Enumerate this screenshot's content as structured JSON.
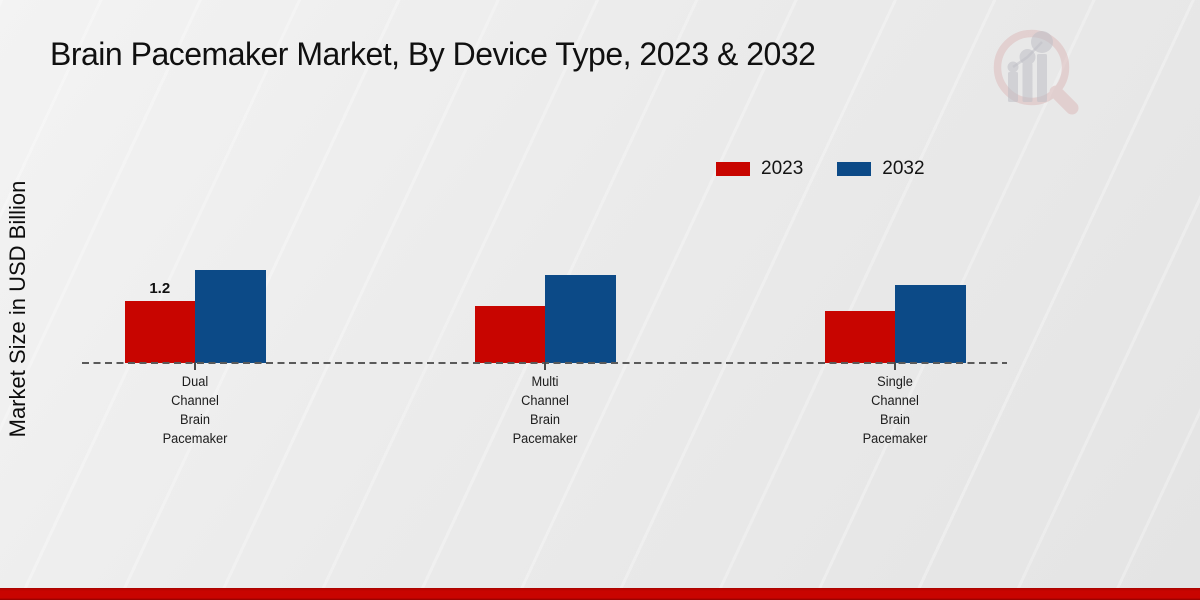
{
  "title": "Brain Pacemaker Market, By Device Type, 2023 & 2032",
  "watermark": {
    "icon": "market-research-future-magnifier-logo",
    "ring_color": "#dcb8b8",
    "bars_color": "#bfbfc6"
  },
  "colors": {
    "background_top": "#f3f3f3",
    "background_bottom": "#e4e4e4",
    "accent_band": "#c90400",
    "baseline": "#5a5a5a",
    "text": "#111111",
    "series_2023": "#c80500",
    "series_2032": "#0c4a87"
  },
  "chart_data": {
    "type": "bar",
    "title": "Brain Pacemaker Market, By Device Type, 2023 & 2032",
    "xlabel": "",
    "ylabel": "Market Size in USD Billion",
    "ylim": [
      0,
      2
    ],
    "grid": false,
    "legend_position": "top-right",
    "baseline_style": "dashed",
    "categories": [
      "Dual Channel Brain Pacemaker",
      "Multi Channel Brain Pacemaker",
      "Single Channel Brain Pacemaker"
    ],
    "category_label_lines": [
      [
        "Dual",
        "Channel",
        "Brain",
        "Pacemaker"
      ],
      [
        "Multi",
        "Channel",
        "Brain",
        "Pacemaker"
      ],
      [
        "Single",
        "Channel",
        "Brain",
        "Pacemaker"
      ]
    ],
    "series": [
      {
        "name": "2023",
        "color": "#c80500",
        "values": [
          1.2,
          1.1,
          1.0
        ]
      },
      {
        "name": "2032",
        "color": "#0c4a87",
        "values": [
          1.8,
          1.7,
          1.5
        ]
      }
    ],
    "data_labels": [
      {
        "series_index": 0,
        "category_index": 0,
        "text": "1.2"
      }
    ]
  }
}
